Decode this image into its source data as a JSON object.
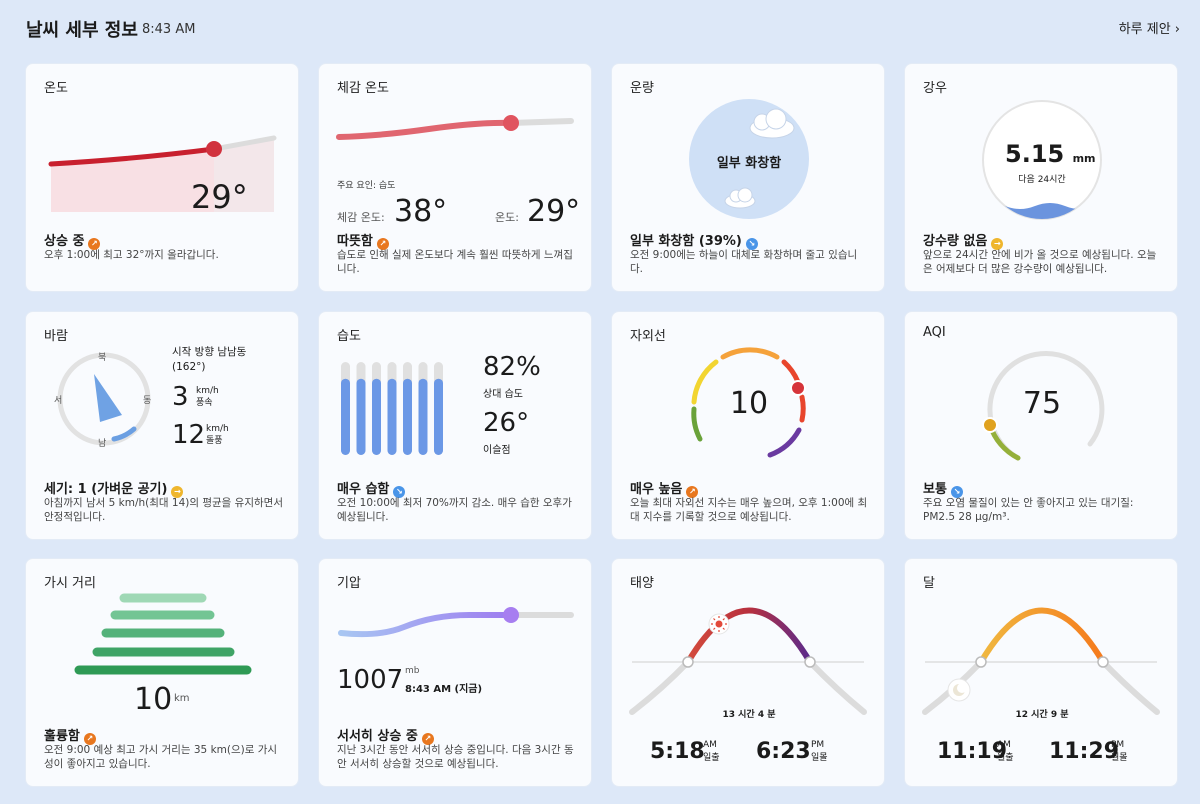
{
  "header": {
    "title": "날씨 세부 정보",
    "time": "8:43 AM",
    "daily_link": "하루 제안 ›"
  },
  "temperature": {
    "title": "온도",
    "value": "29°",
    "status": "상승 중",
    "desc": "오후 1:00에 최고 32°까지 올라갑니다."
  },
  "feels_like": {
    "title": "체감 온도",
    "factor": "주요 요인: 습도",
    "feels_label": "체감 온도:",
    "feels_value": "38°",
    "temp_label": "온도:",
    "temp_value": "29°",
    "status": "따뜻함",
    "desc": "습도로 인해 실제 온도보다 계속 훨씬 따뜻하게 느껴집니다."
  },
  "cloud": {
    "title": "운량",
    "center": "일부 화창함",
    "status": "일부 화창함 (39%)",
    "desc": "오전 9:00에는 하늘이 대체로 화창하며 줄고 있습니다."
  },
  "rain": {
    "title": "강우",
    "amount": "5.15",
    "unit": "mm",
    "period": "다음 24시간",
    "status": "강수량 없음",
    "desc": "앞으로 24시간 안에 비가 올 것으로 예상됩니다. 오늘은 어제보다 더 많은 강수량이 예상됩니다."
  },
  "wind": {
    "title": "바람",
    "north": "북",
    "west": "서",
    "east": "동",
    "south": "남",
    "direction": "시작 방향 남남동",
    "direction_deg": "(162°)",
    "speed": "3",
    "speed_unit": "km/h",
    "speed_label": "풍속",
    "gust": "12",
    "gust_unit": "km/h",
    "gust_label": "돌풍",
    "status": "세기: 1 (가벼운 공기)",
    "desc": "아침까지 남서 5 km/h(최대 14)의 평균을 유지하면서 안정적입니다."
  },
  "humidity": {
    "title": "습도",
    "value": "82%",
    "value_label": "상대 습도",
    "dew": "26°",
    "dew_label": "이슬점",
    "status": "매우 습함",
    "desc": "오전 10:00에 최저 70%까지 감소. 매우 습한 오후가 예상됩니다.",
    "level": 0.82
  },
  "uv": {
    "title": "자외선",
    "value": "10",
    "status": "매우 높음",
    "desc": "오늘 최대 자외선 지수는 매우 높으며, 오후 1:00에 최대 지수를 기록할 것으로 예상됩니다."
  },
  "aqi": {
    "title": "AQI",
    "value": "75",
    "status": "보통",
    "desc": "주요 오염 물질이 있는 안 좋아지고 있는 대기질: PM2.5 28 µg/m³."
  },
  "visibility": {
    "title": "가시 거리",
    "value": "10",
    "unit": "km",
    "status": "훌륭함",
    "desc": "오전 9:00 예상 최고 가시 거리는 35 km(으)로 가시성이 좋아지고 있습니다."
  },
  "pressure": {
    "title": "기압",
    "value": "1007",
    "unit": "mb",
    "time": "8:43 AM (지금)",
    "status": "서서히 상승 중",
    "desc": "지난 3시간 동안 서서히 상승 중입니다. 다음 3시간 동안 서서히 상승할 것으로 예상됩니다."
  },
  "sun": {
    "title": "태양",
    "duration": "13 시간 4 분",
    "rise": "5:18",
    "rise_ampm": "AM",
    "rise_label": "일출",
    "set": "6:23",
    "set_ampm": "PM",
    "set_label": "일몰"
  },
  "moon": {
    "title": "달",
    "duration": "12 시간 9 분",
    "rise": "11:19",
    "rise_ampm": "AM",
    "rise_label": "월출",
    "set": "11:29",
    "set_ampm": "PM",
    "set_label": "월몰"
  }
}
